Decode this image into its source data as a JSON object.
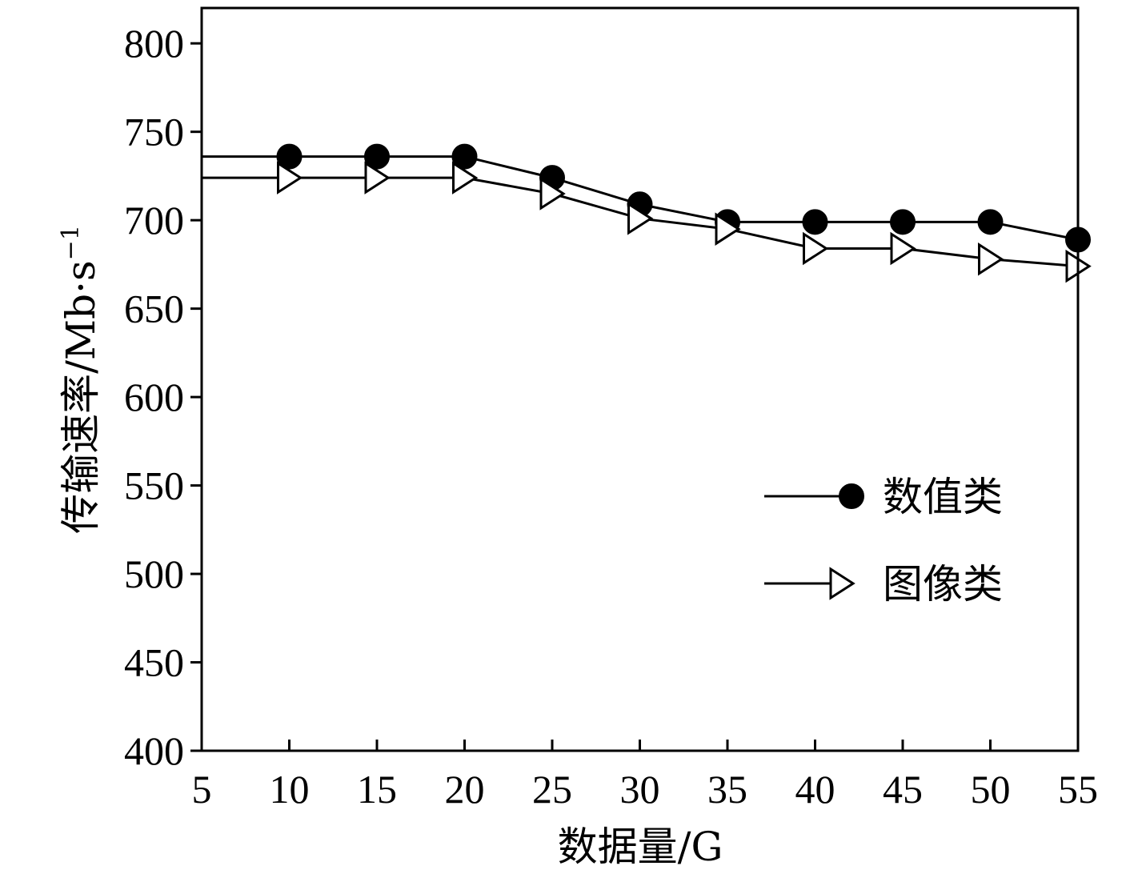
{
  "chart_data": {
    "type": "line",
    "xlabel": "数据量/G",
    "ylabel": "传输速率/Mb·s",
    "ylabel_superscript": "−1",
    "xlim": [
      5,
      55
    ],
    "ylim": [
      400,
      820
    ],
    "xticks": [
      5,
      10,
      15,
      20,
      25,
      30,
      35,
      40,
      45,
      50,
      55
    ],
    "yticks": [
      400,
      450,
      500,
      550,
      600,
      650,
      700,
      750,
      800
    ],
    "grid": false,
    "legend_position": "right-middle",
    "series": [
      {
        "name": "数值类",
        "marker": "filled-circle",
        "x": [
          10,
          15,
          20,
          25,
          30,
          35,
          40,
          45,
          50,
          55
        ],
        "y": [
          736,
          736,
          736,
          724,
          709,
          699,
          699,
          699,
          699,
          689
        ],
        "line_start_y": 736
      },
      {
        "name": "图像类",
        "marker": "open-right-triangle",
        "x": [
          10,
          15,
          20,
          25,
          30,
          35,
          40,
          45,
          50,
          55
        ],
        "y": [
          724,
          724,
          724,
          715,
          701,
          695,
          684,
          684,
          678,
          674
        ],
        "line_start_y": 724
      }
    ]
  }
}
